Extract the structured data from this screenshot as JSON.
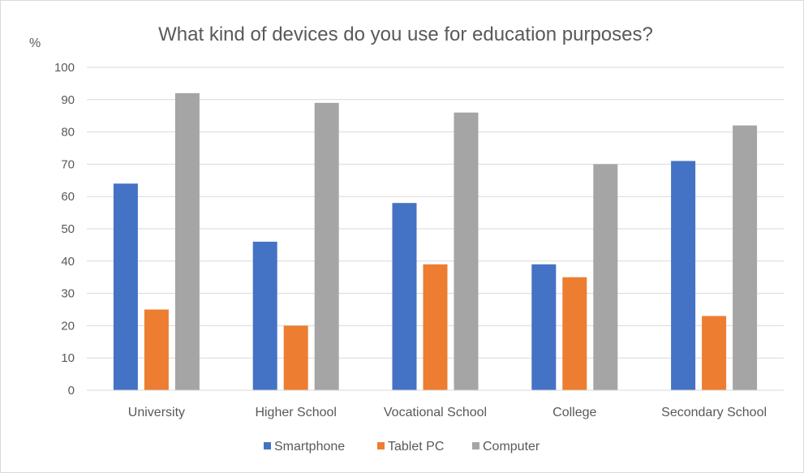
{
  "chart_data": {
    "type": "bar",
    "title": "What kind of devices do you use for education purposes?",
    "ylabel": "%",
    "xlabel": "",
    "ylim": [
      0,
      100
    ],
    "yticks": [
      0,
      10,
      20,
      30,
      40,
      50,
      60,
      70,
      80,
      90,
      100
    ],
    "grid": true,
    "legend_position": "bottom",
    "categories": [
      "University",
      "Higher School",
      "Vocational School",
      "College",
      "Secondary School"
    ],
    "series": [
      {
        "name": "Smartphone",
        "color": "#4472c4",
        "values": [
          64,
          46,
          58,
          39,
          71
        ]
      },
      {
        "name": "Tablet PC",
        "color": "#ed7d31",
        "values": [
          25,
          20,
          39,
          35,
          23
        ]
      },
      {
        "name": "Computer",
        "color": "#a5a5a5",
        "values": [
          92,
          89,
          86,
          70,
          82
        ]
      }
    ]
  }
}
